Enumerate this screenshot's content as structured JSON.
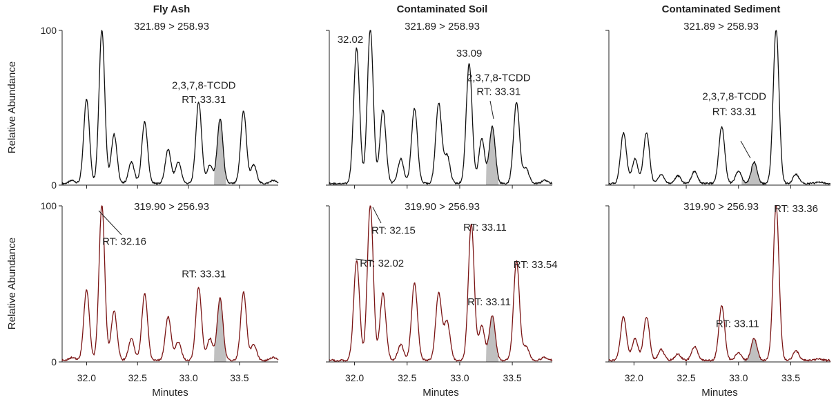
{
  "figure": {
    "ylabel": "Relative Abundance",
    "xlabel": "Minutes",
    "yticks": [
      "0",
      "100"
    ],
    "xticks": [
      "32.0",
      "32.5",
      "33.0",
      "33.5"
    ],
    "colors": {
      "top_trace": "#111111",
      "bottom_trace": "#7a1414",
      "fill": "#c0c0c0"
    },
    "columns": [
      {
        "title": "Fly Ash",
        "top_transition": "321.89 > 258.93",
        "bottom_transition": "319.90 > 256.93"
      },
      {
        "title": "Contaminated Soil",
        "top_transition": "321.89 > 258.93",
        "bottom_transition": "319.90 > 256.93"
      },
      {
        "title": "Contaminated Sediment",
        "top_transition": "321.89 > 258.93",
        "bottom_transition": "319.90 > 256.93"
      }
    ]
  },
  "chart_data": [
    {
      "type": "line",
      "panel": "Fly Ash",
      "trace": "321.89 > 258.93",
      "xlabel": "",
      "ylabel": "Relative Abundance",
      "xlim": [
        31.76,
        33.88
      ],
      "ylim": [
        0,
        100
      ],
      "baseline": 1,
      "peaks": [
        {
          "x": 31.86,
          "y": 2
        },
        {
          "x": 32.0,
          "y": 55
        },
        {
          "x": 32.15,
          "y": 100
        },
        {
          "x": 32.27,
          "y": 32
        },
        {
          "x": 32.44,
          "y": 14
        },
        {
          "x": 32.57,
          "y": 40
        },
        {
          "x": 32.8,
          "y": 22
        },
        {
          "x": 32.9,
          "y": 14
        },
        {
          "x": 33.1,
          "y": 53
        },
        {
          "x": 33.21,
          "y": 12
        },
        {
          "x": 33.31,
          "y": 42
        },
        {
          "x": 33.54,
          "y": 47
        },
        {
          "x": 33.64,
          "y": 12
        },
        {
          "x": 33.83,
          "y": 2
        }
      ],
      "fill_range": [
        33.25,
        33.37
      ],
      "annotations": [
        {
          "text": "2,3,7,8-TCDD",
          "x": 33.15,
          "y": 62
        },
        {
          "text": "RT: 33.31",
          "x": 33.15,
          "y": 53
        }
      ]
    },
    {
      "type": "line",
      "panel": "Contaminated Soil",
      "trace": "321.89 > 258.93",
      "xlabel": "",
      "ylabel": "",
      "xlim": [
        31.76,
        33.88
      ],
      "ylim": [
        0,
        100
      ],
      "baseline": 1,
      "peaks": [
        {
          "x": 32.02,
          "y": 88
        },
        {
          "x": 32.15,
          "y": 100
        },
        {
          "x": 32.27,
          "y": 48
        },
        {
          "x": 32.44,
          "y": 16
        },
        {
          "x": 32.57,
          "y": 49
        },
        {
          "x": 32.8,
          "y": 52
        },
        {
          "x": 32.88,
          "y": 18
        },
        {
          "x": 33.09,
          "y": 78
        },
        {
          "x": 33.21,
          "y": 29
        },
        {
          "x": 33.31,
          "y": 37
        },
        {
          "x": 33.54,
          "y": 53
        },
        {
          "x": 33.63,
          "y": 10
        },
        {
          "x": 33.81,
          "y": 2
        }
      ],
      "fill_range": [
        33.25,
        33.37
      ],
      "annotations": [
        {
          "text": "32.02",
          "x": 31.96,
          "y": 92
        },
        {
          "text": "33.09",
          "x": 33.09,
          "y": 83
        },
        {
          "text": "2,3,7,8-TCDD",
          "x": 33.37,
          "y": 67
        },
        {
          "text": "RT: 33.31",
          "x": 33.37,
          "y": 58
        }
      ]
    },
    {
      "type": "line",
      "panel": "Contaminated Sediment",
      "trace": "321.89 > 258.93",
      "xlabel": "",
      "ylabel": "",
      "xlim": [
        31.76,
        33.88
      ],
      "ylim": [
        0,
        100
      ],
      "baseline": 1,
      "peaks": [
        {
          "x": 31.9,
          "y": 33
        },
        {
          "x": 32.01,
          "y": 16
        },
        {
          "x": 32.12,
          "y": 33
        },
        {
          "x": 32.26,
          "y": 6
        },
        {
          "x": 32.42,
          "y": 5
        },
        {
          "x": 32.58,
          "y": 8
        },
        {
          "x": 32.84,
          "y": 37
        },
        {
          "x": 33.0,
          "y": 8
        },
        {
          "x": 33.15,
          "y": 14
        },
        {
          "x": 33.36,
          "y": 100
        },
        {
          "x": 33.55,
          "y": 6
        },
        {
          "x": 33.77,
          "y": 1
        }
      ],
      "fill_range": [
        33.03,
        33.27
      ],
      "annotations": [
        {
          "text": "2,3,7,8-TCDD",
          "x": 32.96,
          "y": 55
        },
        {
          "text": "RT: 33.31",
          "x": 32.96,
          "y": 45
        }
      ]
    },
    {
      "type": "line",
      "panel": "Fly Ash",
      "trace": "319.90 > 256.93",
      "xlabel": "Minutes",
      "ylabel": "Relative Abundance",
      "xlim": [
        31.76,
        33.88
      ],
      "ylim": [
        0,
        100
      ],
      "baseline": 1,
      "peaks": [
        {
          "x": 31.86,
          "y": 2
        },
        {
          "x": 32.0,
          "y": 45
        },
        {
          "x": 32.15,
          "y": 100
        },
        {
          "x": 32.27,
          "y": 32
        },
        {
          "x": 32.44,
          "y": 14
        },
        {
          "x": 32.57,
          "y": 43
        },
        {
          "x": 32.8,
          "y": 28
        },
        {
          "x": 32.9,
          "y": 12
        },
        {
          "x": 33.1,
          "y": 47
        },
        {
          "x": 33.21,
          "y": 14
        },
        {
          "x": 33.31,
          "y": 40
        },
        {
          "x": 33.54,
          "y": 44
        },
        {
          "x": 33.64,
          "y": 10
        },
        {
          "x": 33.83,
          "y": 2
        }
      ],
      "fill_range": [
        33.25,
        33.37
      ],
      "annotations": [
        {
          "text": "RT: 32.16",
          "x": 32.37,
          "y": 75
        },
        {
          "text": "RT: 33.31",
          "x": 33.15,
          "y": 54
        }
      ]
    },
    {
      "type": "line",
      "panel": "Contaminated Soil",
      "trace": "319.90 > 256.93",
      "xlabel": "Minutes",
      "ylabel": "",
      "xlim": [
        31.76,
        33.88
      ],
      "ylim": [
        0,
        100
      ],
      "baseline": 1,
      "peaks": [
        {
          "x": 32.02,
          "y": 64
        },
        {
          "x": 32.15,
          "y": 100
        },
        {
          "x": 32.27,
          "y": 43
        },
        {
          "x": 32.44,
          "y": 10
        },
        {
          "x": 32.57,
          "y": 50
        },
        {
          "x": 32.8,
          "y": 43
        },
        {
          "x": 32.88,
          "y": 25
        },
        {
          "x": 33.11,
          "y": 88
        },
        {
          "x": 33.21,
          "y": 22
        },
        {
          "x": 33.31,
          "y": 29
        },
        {
          "x": 33.54,
          "y": 64
        },
        {
          "x": 33.63,
          "y": 9
        },
        {
          "x": 33.81,
          "y": 2
        }
      ],
      "fill_range": [
        33.25,
        33.37
      ],
      "annotations": [
        {
          "text": "RT: 32.15",
          "x": 32.37,
          "y": 82
        },
        {
          "text": "RT: 32.02",
          "x": 32.26,
          "y": 61
        },
        {
          "text": "RT: 33.11",
          "x": 33.24,
          "y": 84
        },
        {
          "text": "RT: 33.11",
          "x": 33.28,
          "y": 36
        },
        {
          "text": "RT: 33.54",
          "x": 33.72,
          "y": 60
        }
      ]
    },
    {
      "type": "line",
      "panel": "Contaminated Sediment",
      "trace": "319.90 > 256.93",
      "xlabel": "Minutes",
      "ylabel": "",
      "xlim": [
        31.76,
        33.88
      ],
      "ylim": [
        0,
        100
      ],
      "baseline": 1,
      "peaks": [
        {
          "x": 31.9,
          "y": 28
        },
        {
          "x": 32.01,
          "y": 14
        },
        {
          "x": 32.12,
          "y": 28
        },
        {
          "x": 32.26,
          "y": 7
        },
        {
          "x": 32.42,
          "y": 4
        },
        {
          "x": 32.58,
          "y": 9
        },
        {
          "x": 32.84,
          "y": 35
        },
        {
          "x": 33.0,
          "y": 5
        },
        {
          "x": 33.15,
          "y": 14
        },
        {
          "x": 33.36,
          "y": 100
        },
        {
          "x": 33.55,
          "y": 6
        },
        {
          "x": 33.77,
          "y": 1
        }
      ],
      "fill_range": [
        33.05,
        33.25
      ],
      "annotations": [
        {
          "text": "RT: 33.36",
          "x": 33.55,
          "y": 96
        },
        {
          "text": "RT: 33.11",
          "x": 32.99,
          "y": 22
        }
      ]
    }
  ]
}
